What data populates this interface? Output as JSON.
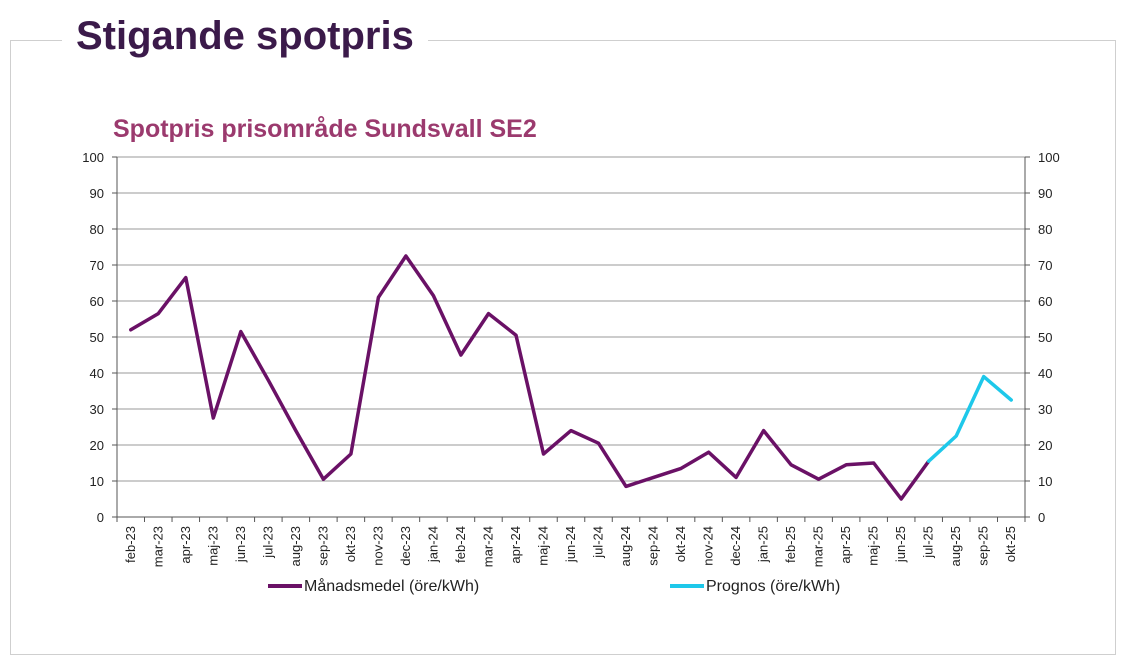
{
  "page": {
    "heading": "Stigande spotpris"
  },
  "colors": {
    "heading": "#3b1a4a",
    "chart_title": "#9b3a6e",
    "actual": "#6a1166",
    "forecast": "#1ec8ea",
    "grid": "#9a9a9a"
  },
  "chart_data": {
    "type": "line",
    "title": "Spotpris prisområde Sundsvall SE2",
    "xlabel": "",
    "ylabel": "",
    "ylim": [
      0,
      100
    ],
    "y_ticks": [
      0,
      10,
      20,
      30,
      40,
      50,
      60,
      70,
      80,
      90,
      100
    ],
    "secondary_y_axis": true,
    "grid": "horizontal",
    "legend_position": "bottom",
    "categories": [
      "feb-23",
      "mar-23",
      "apr-23",
      "maj-23",
      "jun-23",
      "jul-23",
      "aug-23",
      "sep-23",
      "okt-23",
      "nov-23",
      "dec-23",
      "jan-24",
      "feb-24",
      "mar-24",
      "apr-24",
      "maj-24",
      "jun-24",
      "jul-24",
      "aug-24",
      "sep-24",
      "okt-24",
      "nov-24",
      "dec-24",
      "jan-25",
      "feb-25",
      "mar-25",
      "apr-25",
      "maj-25",
      "jun-25",
      "jul-25",
      "aug-25",
      "sep-25",
      "okt-25"
    ],
    "series": [
      {
        "name": "Månadsmedel (öre/kWh)",
        "values": [
          52,
          56.5,
          66.5,
          27.5,
          51.5,
          38,
          24,
          10.5,
          17.5,
          61,
          72.5,
          61.5,
          45,
          56.5,
          50.5,
          17.5,
          24,
          20.5,
          8.5,
          11,
          13.5,
          18,
          11,
          24,
          14.5,
          10.5,
          14.5,
          15,
          5,
          15.5,
          null,
          null,
          null
        ]
      },
      {
        "name": "Prognos (öre/kWh)",
        "values": [
          null,
          null,
          null,
          null,
          null,
          null,
          null,
          null,
          null,
          null,
          null,
          null,
          null,
          null,
          null,
          null,
          null,
          null,
          null,
          null,
          null,
          null,
          null,
          null,
          null,
          null,
          null,
          null,
          null,
          15.5,
          22.5,
          39,
          32.5
        ]
      }
    ]
  }
}
